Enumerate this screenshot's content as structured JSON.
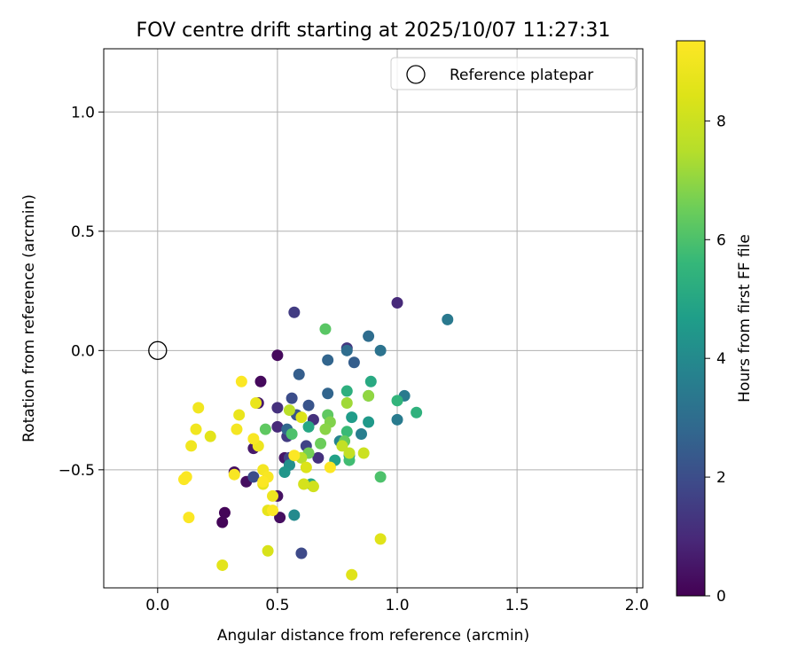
{
  "chart_data": {
    "type": "scatter",
    "title": "FOV centre drift starting at 2025/10/07 11:27:31",
    "xlabel": "Angular distance from reference (arcmin)",
    "ylabel": "Rotation from reference (arcmin)",
    "xlim": [
      -0.225,
      2.025
    ],
    "ylim": [
      -0.995,
      1.265
    ],
    "xticks": [
      0.0,
      0.5,
      1.0,
      1.5,
      2.0
    ],
    "xtick_labels": [
      "0.0",
      "0.5",
      "1.0",
      "1.5",
      "2.0"
    ],
    "yticks": [
      -0.5,
      0.0,
      0.5,
      1.0
    ],
    "ytick_labels": [
      "−0.5",
      "0.0",
      "0.5",
      "1.0"
    ],
    "grid": true,
    "legend": {
      "position": "top-right",
      "entries": [
        "Reference platepar"
      ]
    },
    "reference_point": {
      "x": 0.0,
      "y": 0.0
    },
    "colorbar": {
      "label": "Hours from first FF file",
      "colormap": "viridis",
      "range": [
        0,
        9.35
      ],
      "ticks": [
        0,
        2,
        4,
        6,
        8
      ],
      "tick_labels": [
        "0",
        "2",
        "4",
        "6",
        "8"
      ]
    },
    "points": [
      [
        0.27,
        -0.72,
        0.1
      ],
      [
        0.28,
        -0.68,
        0.1
      ],
      [
        0.43,
        -0.13,
        0.2
      ],
      [
        0.5,
        -0.02,
        0.2
      ],
      [
        0.32,
        -0.51,
        0.3
      ],
      [
        0.37,
        -0.55,
        0.3
      ],
      [
        0.51,
        -0.7,
        0.3
      ],
      [
        0.5,
        -0.61,
        0.4
      ],
      [
        0.53,
        -0.45,
        0.5
      ],
      [
        0.4,
        -0.41,
        0.6
      ],
      [
        0.42,
        -0.22,
        0.6
      ],
      [
        1.0,
        0.2,
        1.0
      ],
      [
        0.5,
        -0.32,
        1.0
      ],
      [
        0.5,
        -0.24,
        1.2
      ],
      [
        0.67,
        -0.45,
        1.2
      ],
      [
        0.65,
        -0.29,
        1.2
      ],
      [
        0.79,
        0.01,
        1.4
      ],
      [
        0.57,
        0.16,
        1.5
      ],
      [
        0.54,
        -0.36,
        1.5
      ],
      [
        0.62,
        -0.4,
        1.7
      ],
      [
        0.55,
        -0.45,
        1.7
      ],
      [
        0.6,
        -0.85,
        1.9
      ],
      [
        0.4,
        -0.53,
        2.0
      ],
      [
        0.56,
        -0.2,
        2.0
      ],
      [
        0.63,
        -0.23,
        2.2
      ],
      [
        0.58,
        -0.27,
        2.2
      ],
      [
        0.55,
        -0.48,
        2.3
      ],
      [
        0.59,
        -0.1,
        2.5
      ],
      [
        0.82,
        -0.05,
        2.5
      ],
      [
        0.71,
        -0.04,
        2.7
      ],
      [
        0.71,
        -0.18,
        2.7
      ],
      [
        0.54,
        -0.33,
        2.8
      ],
      [
        0.79,
        0.0,
        3.0
      ],
      [
        0.88,
        0.06,
        3.0
      ],
      [
        0.93,
        0.0,
        3.2
      ],
      [
        1.21,
        0.13,
        3.4
      ],
      [
        1.03,
        -0.19,
        3.5
      ],
      [
        1.0,
        -0.29,
        3.5
      ],
      [
        0.85,
        -0.35,
        3.6
      ],
      [
        0.76,
        -0.38,
        3.8
      ],
      [
        0.57,
        -0.69,
        4.0
      ],
      [
        0.55,
        -0.48,
        4.2
      ],
      [
        0.53,
        -0.51,
        4.4
      ],
      [
        0.88,
        -0.3,
        4.5
      ],
      [
        0.81,
        -0.28,
        4.6
      ],
      [
        0.8,
        -0.44,
        4.7
      ],
      [
        0.74,
        -0.46,
        4.8
      ],
      [
        0.64,
        -0.56,
        5.0
      ],
      [
        0.63,
        -0.32,
        5.0
      ],
      [
        0.89,
        -0.13,
        5.1
      ],
      [
        0.79,
        -0.17,
        5.3
      ],
      [
        1.08,
        -0.26,
        5.4
      ],
      [
        1.0,
        -0.21,
        5.5
      ],
      [
        0.88,
        -0.19,
        5.6
      ],
      [
        0.79,
        -0.34,
        5.7
      ],
      [
        0.8,
        -0.46,
        5.8
      ],
      [
        0.93,
        -0.53,
        6.0
      ],
      [
        0.56,
        -0.35,
        6.0
      ],
      [
        0.7,
        0.09,
        6.2
      ],
      [
        0.45,
        -0.33,
        6.3
      ],
      [
        0.71,
        -0.27,
        6.3
      ],
      [
        0.78,
        -0.38,
        6.4
      ],
      [
        0.68,
        -0.39,
        6.5
      ],
      [
        0.63,
        -0.43,
        6.6
      ],
      [
        0.72,
        -0.3,
        6.8
      ],
      [
        0.7,
        -0.33,
        6.9
      ],
      [
        0.88,
        -0.19,
        7.0
      ],
      [
        0.79,
        -0.22,
        7.2
      ],
      [
        0.55,
        -0.25,
        7.6
      ],
      [
        0.6,
        -0.45,
        7.6
      ],
      [
        0.8,
        -0.43,
        7.8
      ],
      [
        0.77,
        -0.4,
        7.8
      ],
      [
        0.86,
        -0.43,
        8.0
      ],
      [
        0.65,
        -0.57,
        8.1
      ],
      [
        0.61,
        -0.56,
        8.2
      ],
      [
        0.46,
        -0.84,
        8.3
      ],
      [
        0.6,
        -0.28,
        8.4
      ],
      [
        0.62,
        -0.49,
        8.4
      ],
      [
        0.93,
        -0.79,
        8.5
      ],
      [
        0.81,
        -0.94,
        8.5
      ],
      [
        0.27,
        -0.9,
        8.6
      ],
      [
        0.22,
        -0.36,
        8.6
      ],
      [
        0.46,
        -0.67,
        8.7
      ],
      [
        0.44,
        -0.56,
        8.7
      ],
      [
        0.34,
        -0.27,
        8.8
      ],
      [
        0.41,
        -0.22,
        8.8
      ],
      [
        0.48,
        -0.61,
        8.9
      ],
      [
        0.42,
        -0.4,
        8.9
      ],
      [
        0.17,
        -0.24,
        9.0
      ],
      [
        0.14,
        -0.4,
        9.0
      ],
      [
        0.16,
        -0.33,
        9.0
      ],
      [
        0.33,
        -0.33,
        9.1
      ],
      [
        0.44,
        -0.5,
        9.1
      ],
      [
        0.32,
        -0.52,
        9.2
      ],
      [
        0.4,
        -0.37,
        9.2
      ],
      [
        0.46,
        -0.53,
        9.2
      ],
      [
        0.57,
        -0.44,
        9.3
      ],
      [
        0.72,
        -0.49,
        9.3
      ],
      [
        0.35,
        -0.13,
        9.3
      ],
      [
        0.11,
        -0.54,
        9.3
      ],
      [
        0.12,
        -0.53,
        9.3
      ],
      [
        0.13,
        -0.7,
        9.3
      ],
      [
        0.44,
        -0.55,
        9.3
      ],
      [
        0.48,
        -0.67,
        9.3
      ]
    ]
  }
}
